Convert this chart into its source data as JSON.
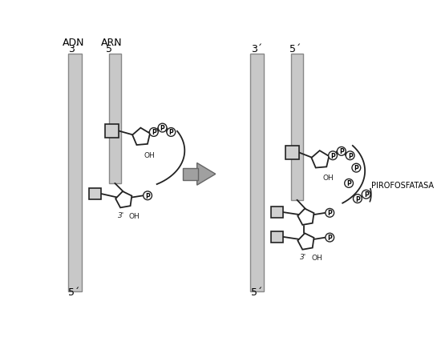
{
  "bg_color": "#ffffff",
  "gray_bar": "#c8c8c8",
  "gray_bar_edge": "#888888",
  "nuc_fill": "#d0d0d0",
  "nuc_edge": "#222222",
  "line_color": "#222222",
  "arrow_gray": "#a0a0a0",
  "text_color": "#000000",
  "pirofosfatasa": "PIROFOSFATASA",
  "label_adn": "ADN",
  "label_arn": "ARN"
}
